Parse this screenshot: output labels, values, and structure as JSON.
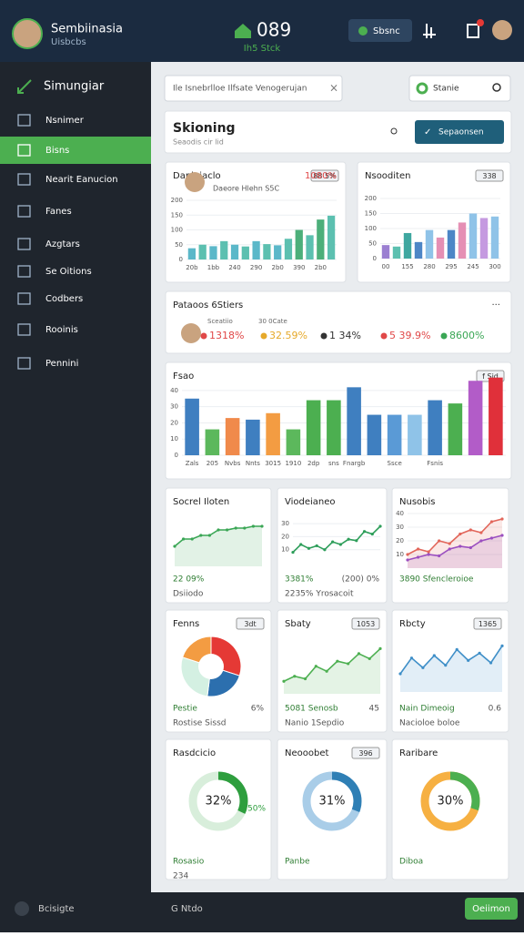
{
  "header": {
    "title": "Sembiinasia",
    "subtitle": "Uisbcbs",
    "center_title": "089",
    "center_sub": "Ih5 Stck",
    "button": "Sbsnc"
  },
  "sidebar": {
    "title": "Simungiar",
    "items": [
      "Nsnimer",
      "Bisns",
      "Nearit Eanucion",
      "Fanes",
      "Azgtars",
      "Se Oitions",
      "Codbers",
      "Rooinis",
      "Pennini"
    ]
  },
  "search": {
    "placeholder": "Ile Isnebrlloe Ilfsate Venogerujan",
    "button": "Stanie"
  },
  "section": {
    "title": "Skioning",
    "subtitle": "Seaodis cir lid",
    "button": "Sepaonsen"
  },
  "footer_bar": {
    "left": "Bcisigte",
    "center": "G Ntdo",
    "button": "Oeiimon"
  },
  "cards": [
    {
      "type": "bar",
      "title": "Danipiaclo",
      "value": "1080%",
      "subtitle": "Daeore Hlehn S5C",
      "badge": "88 5%",
      "ylim": [
        0,
        200
      ],
      "yticks": [
        0,
        50,
        100,
        150,
        200
      ],
      "values": [
        38,
        50,
        45,
        62,
        50,
        44,
        62,
        52,
        48,
        70,
        100,
        82,
        135,
        148
      ],
      "categories": [
        "20b",
        null,
        "1bb",
        null,
        "240",
        null,
        "290",
        null,
        "2b0",
        null,
        "390",
        null,
        "2b0",
        null
      ],
      "colors": [
        "#5bb8c9",
        "#5cc0b0",
        "#5bb8c9",
        "#5cc0b0",
        "#5bb8c9",
        "#5cc0b0",
        "#5bb8c9",
        "#5cc0b0",
        "#5bb8c9",
        "#5cc0b0",
        "#4caf7a",
        "#5cc0b0",
        "#4caf7a",
        "#5cc0b0"
      ]
    },
    {
      "type": "bar",
      "title": "Nsooditen",
      "badge": "338",
      "ylim": [
        0,
        200
      ],
      "yticks": [
        0,
        50,
        100,
        150,
        200
      ],
      "values": [
        45,
        40,
        85,
        55,
        95,
        70,
        95,
        120,
        150,
        135,
        140
      ],
      "categories": [
        "00",
        null,
        "155",
        null,
        "280",
        null,
        "295",
        null,
        "245",
        null,
        "300"
      ],
      "colors": [
        "#9b7fd1",
        "#5cc0b0",
        "#3fa7a0",
        "#4d86c6",
        "#8fc3e8",
        "#e58fb4",
        "#4d86c6",
        "#e58fb4",
        "#8fc3e8",
        "#c59ae0",
        "#8fc3e8"
      ]
    },
    {
      "type": "stats",
      "title": "Pataoos 6Stiers",
      "labels": [
        "Sceatiio",
        "30 0Cate"
      ],
      "items": [
        "1318%",
        "32.59%",
        "1 34%",
        "5 39.9%",
        "8600%"
      ],
      "colors": [
        "#e04848",
        "#e6a92a",
        "#333333",
        "#e04848",
        "#3aa655"
      ]
    },
    {
      "type": "bar",
      "title": "Fsao",
      "badge": "f Sid",
      "ylim": [
        0,
        45
      ],
      "yticks": [
        0,
        10,
        20,
        30,
        40
      ],
      "values": [
        35,
        16,
        23,
        22,
        26,
        16,
        34,
        34,
        42,
        25,
        25,
        25,
        34,
        32,
        46,
        48
      ],
      "categories": [
        "Zals",
        "205",
        "Nvbs",
        "Nnts",
        "3015",
        "1910",
        "2dp",
        "sns",
        "Fnargb",
        null,
        "Ssce",
        null,
        "Fsnis",
        null,
        null,
        null
      ],
      "colors": [
        "#3f7fc0",
        "#5cb85c",
        "#f08a4b",
        "#3f7fc0",
        "#f39c42",
        "#5cb85c",
        "#4caf50",
        "#4caf50",
        "#3f7fc0",
        "#3f7fc0",
        "#5a9ad6",
        "#8fc3e8",
        "#3f7fc0",
        "#4caf50",
        "#b25cc8",
        "#e0303a"
      ]
    },
    {
      "type": "line",
      "title": "Socrel Iloten",
      "area": true,
      "ylim": [
        0,
        50
      ],
      "series": [
        {
          "color": "#3aa655",
          "values": [
            22,
            30,
            30,
            34,
            34,
            40,
            40,
            42,
            42,
            44,
            44
          ]
        }
      ],
      "footer": [
        "22 09%",
        "Dsiiodo"
      ]
    },
    {
      "type": "line",
      "title": "Viodeianeo",
      "ylim": [
        0,
        35
      ],
      "yticks": [
        10,
        20,
        30
      ],
      "series": [
        {
          "color": "#2e9e5a",
          "values": [
            8,
            14,
            11,
            13,
            10,
            16,
            14,
            18,
            17,
            24,
            22,
            28
          ]
        }
      ],
      "footer": [
        "3381%",
        "2235% Yrosacoit",
        "(200)   0%"
      ]
    },
    {
      "type": "line",
      "title": "Nusobis",
      "area": true,
      "ylim": [
        0,
        40
      ],
      "yticks": [
        10,
        20,
        30,
        40
      ],
      "series": [
        {
          "color": "#e2665a",
          "values": [
            10,
            14,
            12,
            20,
            18,
            25,
            28,
            26,
            34,
            36
          ]
        },
        {
          "color": "#9b4fc0",
          "values": [
            6,
            8,
            10,
            9,
            14,
            16,
            15,
            20,
            22,
            24
          ]
        }
      ],
      "footer": [
        "3890 Sfencleroioe"
      ]
    },
    {
      "type": "pie",
      "title": "Fenns",
      "badge": "3dt",
      "values": [
        30,
        22,
        28,
        20
      ],
      "colors": [
        "#e53935",
        "#2c6fae",
        "#d4f0e2",
        "#f39c42"
      ],
      "footer": [
        "Pestie",
        "Rostise Sissd",
        "6%"
      ]
    },
    {
      "type": "line",
      "title": "Sbaty",
      "area": true,
      "badge": "1053",
      "ylim": [
        0,
        45
      ],
      "series": [
        {
          "color": "#4caf50",
          "values": [
            10,
            14,
            12,
            22,
            18,
            26,
            24,
            32,
            28,
            36
          ]
        }
      ],
      "footer": [
        "5081 Senosb",
        "Nanio  1Sepdio",
        "45"
      ]
    },
    {
      "type": "line",
      "title": "Rbcty",
      "area": true,
      "badge": "1365",
      "ylim": [
        0,
        45
      ],
      "series": [
        {
          "color": "#3f8fc8",
          "values": [
            15,
            28,
            20,
            30,
            22,
            35,
            26,
            32,
            24,
            38
          ]
        }
      ],
      "footer": [
        "Nain Dimeoig",
        "Nacioloe boloe",
        "0.6"
      ]
    },
    {
      "type": "donut",
      "title": "Rasdcicio",
      "value": 32,
      "value_label": "32%",
      "side": "4.50%",
      "color": "#2e9e3e",
      "track": "#d8eedb",
      "footer": [
        "Rosasio",
        "234"
      ]
    },
    {
      "type": "donut",
      "title": "Neooobet",
      "badge": "396",
      "value": 31,
      "value_label": "31%",
      "color": "#2f7fb5",
      "track": "#a9cde8",
      "footer": [
        "Panbe"
      ]
    },
    {
      "type": "donut",
      "title": "Raribare",
      "value": 30,
      "value_label": "30%",
      "color": "#4caf50",
      "track": "#f6b042",
      "footer": [
        "Diboa"
      ]
    }
  ]
}
